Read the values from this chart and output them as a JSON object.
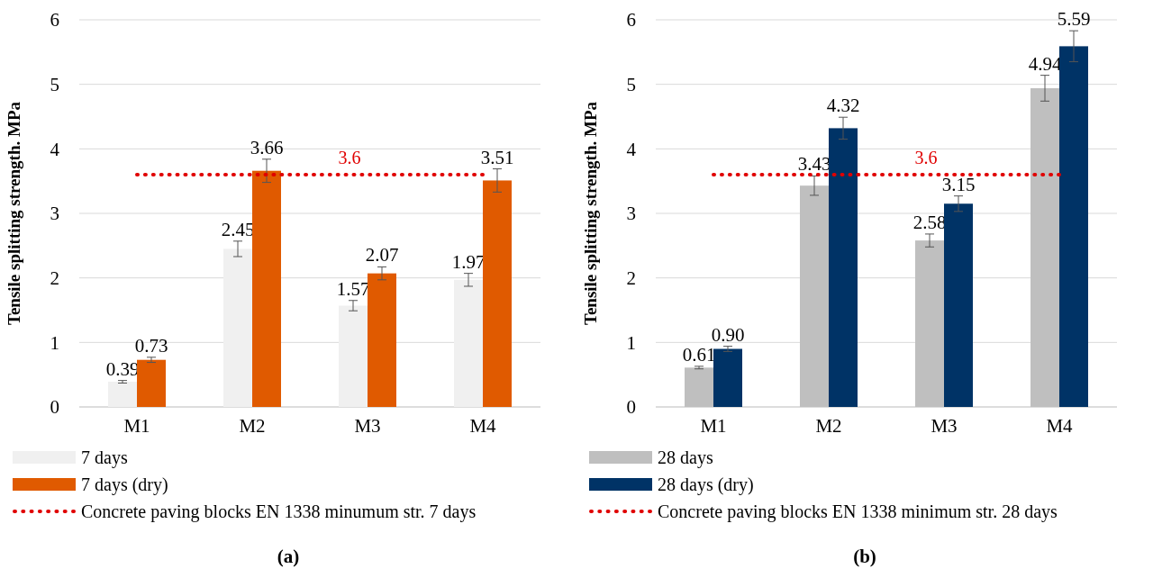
{
  "chart_data": [
    {
      "type": "bar",
      "title": "(a)",
      "ylabel": "Tensile splitting strength. MPa",
      "categories": [
        "M1",
        "M2",
        "M3",
        "M4"
      ],
      "ylim": [
        0,
        6
      ],
      "yticks": [
        0,
        1,
        2,
        3,
        4,
        5,
        6
      ],
      "grid": "y",
      "legend": "bottom",
      "series": [
        {
          "name": "7 days",
          "color": "#f0f0f0",
          "values": [
            0.39,
            2.45,
            1.57,
            1.97
          ],
          "errors": [
            0.02,
            0.12,
            0.08,
            0.1
          ],
          "value_labels": [
            "0.39",
            "2.45",
            "1.57",
            "1.97"
          ]
        },
        {
          "name": "7 days (dry)",
          "color": "#e05a00",
          "values": [
            0.73,
            3.66,
            2.07,
            3.51
          ],
          "errors": [
            0.04,
            0.18,
            0.1,
            0.18
          ],
          "value_labels": [
            "0.73",
            "3.66",
            "2.07",
            "3.51"
          ]
        },
        {
          "type": "line",
          "name": "Concrete paving blocks EN 1338 minumum str. 7 days",
          "color": "#e00000",
          "line_style": "dotted",
          "values": [
            3.6,
            3.6,
            3.6,
            3.6
          ],
          "value_labels": [
            null,
            null,
            "3.6",
            null
          ]
        }
      ]
    },
    {
      "type": "bar",
      "title": "(b)",
      "ylabel": "Tensile splitting strength. MPa",
      "categories": [
        "M1",
        "M2",
        "M3",
        "M4"
      ],
      "ylim": [
        0,
        6
      ],
      "yticks": [
        0,
        1,
        2,
        3,
        4,
        5,
        6
      ],
      "grid": "y",
      "legend": "bottom",
      "series": [
        {
          "name": "28 days",
          "color": "#bfbfbf",
          "values": [
            0.61,
            3.43,
            2.58,
            4.94
          ],
          "errors": [
            0.02,
            0.15,
            0.1,
            0.2
          ],
          "value_labels": [
            "0.61",
            "3.43",
            "2.58",
            "4.94"
          ]
        },
        {
          "name": "28 days (dry)",
          "color": "#003366",
          "values": [
            0.9,
            4.32,
            3.15,
            5.59
          ],
          "errors": [
            0.04,
            0.17,
            0.12,
            0.24
          ],
          "value_labels": [
            "0.90",
            "4.32",
            "3.15",
            "5.59"
          ]
        },
        {
          "type": "line",
          "name": "Concrete paving blocks EN 1338 minimum str. 28 days",
          "color": "#e00000",
          "line_style": "dotted",
          "values": [
            3.6,
            3.6,
            3.6,
            3.6
          ],
          "value_labels": [
            null,
            null,
            "3.6",
            null
          ]
        }
      ]
    }
  ]
}
